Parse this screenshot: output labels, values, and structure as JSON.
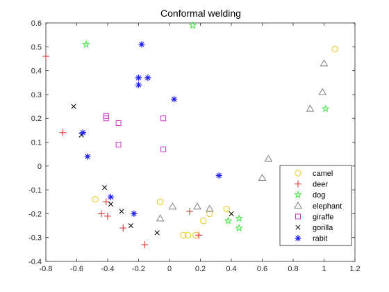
{
  "chart_data": {
    "type": "scatter",
    "title": "Conformal welding",
    "xlabel": "",
    "ylabel": "",
    "xlim": [
      -0.8,
      1.2
    ],
    "ylim": [
      -0.4,
      0.6
    ],
    "xticks": [
      -0.8,
      -0.6,
      -0.4,
      -0.2,
      0,
      0.2,
      0.4,
      0.6,
      0.8,
      1,
      1.2
    ],
    "yticks": [
      -0.4,
      -0.3,
      -0.2,
      -0.1,
      0,
      0.1,
      0.2,
      0.3,
      0.4,
      0.5,
      0.6
    ],
    "xtick_labels": [
      "-0.8",
      "-0.6",
      "-0.4",
      "-0.2",
      "0",
      "0.2",
      "0.4",
      "0.6",
      "0.8",
      "1",
      "1.2"
    ],
    "ytick_labels": [
      "-0.4",
      "-0.3",
      "-0.2",
      "-0.1",
      "0",
      "0.1",
      "0.2",
      "0.3",
      "0.4",
      "0.5",
      "0.6"
    ],
    "grid": false,
    "legend_position": "bottom-right",
    "series": [
      {
        "name": "camel",
        "marker": "circle",
        "color": "#e6c619",
        "points": [
          [
            1.07,
            0.49
          ],
          [
            -0.48,
            -0.14
          ],
          [
            -0.06,
            -0.15
          ],
          [
            0.37,
            -0.18
          ],
          [
            0.26,
            -0.2
          ],
          [
            0.22,
            -0.23
          ],
          [
            0.09,
            -0.29
          ],
          [
            0.12,
            -0.29
          ],
          [
            0.17,
            -0.29
          ]
        ]
      },
      {
        "name": "deer",
        "marker": "plus",
        "color": "#d62728",
        "points": [
          [
            -0.8,
            0.46
          ],
          [
            -0.69,
            0.14
          ],
          [
            -0.44,
            -0.2
          ],
          [
            -0.41,
            -0.15
          ],
          [
            -0.4,
            -0.21
          ],
          [
            -0.3,
            -0.26
          ],
          [
            -0.16,
            -0.33
          ],
          [
            0.13,
            -0.19
          ],
          [
            0.19,
            -0.29
          ]
        ]
      },
      {
        "name": "dog",
        "marker": "pentagram",
        "color": "#33e633",
        "points": [
          [
            -0.54,
            0.51
          ],
          [
            0.15,
            0.59
          ],
          [
            1.01,
            0.24
          ],
          [
            0.45,
            -0.22
          ],
          [
            0.38,
            -0.23
          ],
          [
            0.45,
            -0.26
          ]
        ]
      },
      {
        "name": "elephant",
        "marker": "triangle",
        "color": "#808080",
        "points": [
          [
            1.0,
            0.43
          ],
          [
            0.99,
            0.31
          ],
          [
            0.91,
            0.24
          ],
          [
            0.64,
            0.03
          ],
          [
            0.6,
            -0.05
          ],
          [
            0.02,
            -0.17
          ],
          [
            0.18,
            -0.17
          ],
          [
            0.26,
            -0.18
          ],
          [
            -0.06,
            -0.22
          ]
        ]
      },
      {
        "name": "giraffe",
        "marker": "square",
        "color": "#cc33cc",
        "points": [
          [
            -0.41,
            0.21
          ],
          [
            -0.41,
            0.2
          ],
          [
            -0.33,
            0.18
          ],
          [
            -0.04,
            0.2
          ],
          [
            -0.33,
            0.09
          ],
          [
            -0.04,
            0.07
          ]
        ]
      },
      {
        "name": "gorilla",
        "marker": "x",
        "color": "#000000",
        "points": [
          [
            -0.62,
            0.25
          ],
          [
            -0.57,
            0.13
          ],
          [
            -0.42,
            -0.09
          ],
          [
            -0.38,
            -0.16
          ],
          [
            -0.31,
            -0.19
          ],
          [
            -0.25,
            -0.25
          ],
          [
            -0.08,
            -0.28
          ],
          [
            0.4,
            -0.2
          ]
        ]
      },
      {
        "name": "rabit",
        "marker": "asterisk",
        "color": "#1a1aff",
        "points": [
          [
            -0.18,
            0.51
          ],
          [
            -0.2,
            0.37
          ],
          [
            -0.14,
            0.37
          ],
          [
            -0.2,
            0.34
          ],
          [
            0.03,
            0.28
          ],
          [
            -0.56,
            0.14
          ],
          [
            -0.53,
            0.04
          ],
          [
            -0.38,
            -0.13
          ],
          [
            -0.23,
            -0.2
          ],
          [
            0.32,
            -0.04
          ]
        ]
      }
    ]
  }
}
